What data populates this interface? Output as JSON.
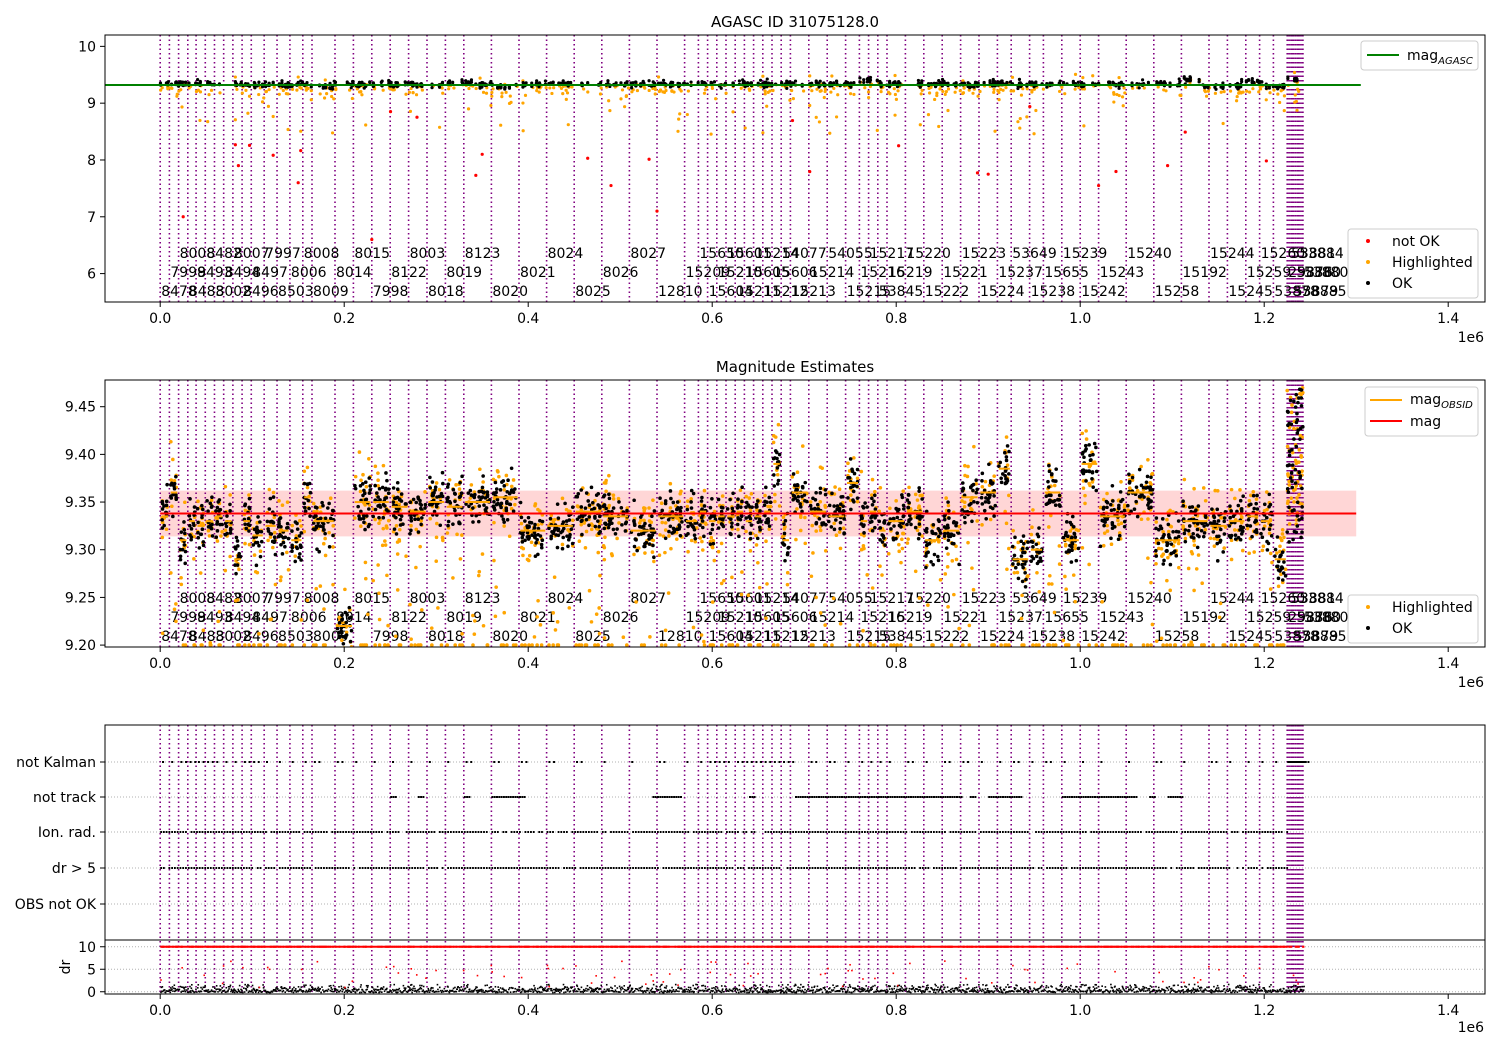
{
  "chart_data": [
    {
      "type": "scatter",
      "title": "AGASC ID 31075128.0",
      "xlabel": "",
      "ylabel": "",
      "x_offset_label": "1e6",
      "xlim": [
        -60000,
        1440000
      ],
      "ylim": [
        5.5,
        10.2
      ],
      "x_ticks": [
        0,
        0.2,
        0.4,
        0.6,
        0.8,
        1.0,
        1.2,
        1.4
      ],
      "x_tick_labels": [
        "0.0",
        "0.2",
        "0.4",
        "0.6",
        "0.8",
        "1.0",
        "1.2",
        "1.4"
      ],
      "y_ticks": [
        6,
        7,
        8,
        9,
        10
      ],
      "y_tick_labels": [
        "6",
        "7",
        "8",
        "9",
        "10"
      ],
      "agasc_mag": 9.32,
      "level_series": [
        {
          "x": [
            0,
            20000
          ],
          "y": [
            9.33,
            9.33
          ]
        },
        {
          "x": [
            20000,
            52000
          ],
          "y": [
            9.35,
            9.35
          ]
        },
        {
          "x": [
            52000,
            164000
          ],
          "y": [
            9.33,
            9.33
          ]
        },
        {
          "x": [
            164000,
            188000
          ],
          "y": [
            9.29,
            9.29
          ]
        },
        {
          "x": [
            188000,
            310000
          ],
          "y": [
            9.33,
            9.33
          ]
        },
        {
          "x": [
            310000,
            340000
          ],
          "y": [
            9.36,
            9.36
          ]
        },
        {
          "x": [
            340000,
            365000
          ],
          "y": [
            9.33,
            9.33
          ]
        },
        {
          "x": [
            365000,
            385000
          ],
          "y": [
            9.28,
            9.28
          ]
        },
        {
          "x": [
            385000,
            760000
          ],
          "y": [
            9.34,
            9.34
          ]
        },
        {
          "x": [
            760000,
            780000
          ],
          "y": [
            9.41,
            9.41
          ]
        },
        {
          "x": [
            780000,
            1110000
          ],
          "y": [
            9.34,
            9.34
          ]
        },
        {
          "x": [
            1110000,
            1130000
          ],
          "y": [
            9.42,
            9.42
          ]
        },
        {
          "x": [
            1130000,
            1175000
          ],
          "y": [
            9.29,
            9.29
          ]
        },
        {
          "x": [
            1175000,
            1200000
          ],
          "y": [
            9.37,
            9.37
          ]
        },
        {
          "x": [
            1200000,
            1225000
          ],
          "y": [
            9.31,
            9.31
          ]
        },
        {
          "x": [
            1225000,
            1242000
          ],
          "y": [
            9.42,
            9.42
          ]
        }
      ],
      "legend_upper": [
        {
          "label": "mag",
          "sub": "AGASC",
          "color": "#008000"
        }
      ],
      "legend_lower": [
        {
          "label": "not OK",
          "color": "#ff0000"
        },
        {
          "label": "Highlighted",
          "color": "#ffa500"
        },
        {
          "label": "OK",
          "color": "#000000"
        }
      ]
    },
    {
      "type": "scatter",
      "title": "Magnitude Estimates",
      "xlabel": "",
      "ylabel": "",
      "x_offset_label": "1e6",
      "xlim": [
        -60000,
        1440000
      ],
      "ylim": [
        9.198,
        9.478
      ],
      "x_ticks": [
        0,
        0.2,
        0.4,
        0.6,
        0.8,
        1.0,
        1.2,
        1.4
      ],
      "x_tick_labels": [
        "0.0",
        "0.2",
        "0.4",
        "0.6",
        "0.8",
        "1.0",
        "1.2",
        "1.4"
      ],
      "y_ticks": [
        9.2,
        9.25,
        9.3,
        9.35,
        9.4,
        9.45
      ],
      "y_tick_labels": [
        "9.20",
        "9.25",
        "9.30",
        "9.35",
        "9.40",
        "9.45"
      ],
      "mean_mag": 9.338,
      "mean_band": [
        9.314,
        9.362
      ],
      "mean_line_x": [
        0,
        1300000
      ],
      "legend_upper": [
        {
          "label": "mag",
          "sub": "OBSID",
          "color": "#ffa500"
        },
        {
          "label": "mag",
          "sub": "",
          "color": "#ff0000"
        }
      ],
      "legend_lower": [
        {
          "label": "Highlighted",
          "color": "#ffa500"
        },
        {
          "label": "OK",
          "color": "#000000"
        }
      ]
    },
    {
      "type": "scatter",
      "title": "",
      "x_offset_label": "1e6",
      "xlim": [
        -60000,
        1440000
      ],
      "flag_labels": [
        "not Kalman",
        "not track",
        "Ion. rad.",
        "dr > 5",
        "OBS not OK"
      ],
      "x_ticks": [
        0,
        0.2,
        0.4,
        0.6,
        0.8,
        1.0,
        1.2,
        1.4
      ],
      "x_tick_labels": [
        "0.0",
        "0.2",
        "0.4",
        "0.6",
        "0.8",
        "1.0",
        "1.2",
        "1.4"
      ],
      "track_ranges": [
        [
          250000,
          255000
        ],
        [
          280000,
          285000
        ],
        [
          330000,
          335000
        ],
        [
          360000,
          395000
        ],
        [
          535000,
          565000
        ],
        [
          640000,
          645000
        ],
        [
          690000,
          780000
        ],
        [
          780000,
          870000
        ],
        [
          880000,
          885000
        ],
        [
          900000,
          935000
        ],
        [
          980000,
          1060000
        ],
        [
          1075000,
          1080000
        ],
        [
          1095000,
          1110000
        ]
      ],
      "dr_subplot": {
        "ylabel": "dr",
        "ylim": [
          -0.5,
          11.5
        ],
        "y_ticks": [
          0,
          5,
          10
        ],
        "y_tick_labels": [
          "0",
          "5",
          "10"
        ],
        "threshold": 10
      }
    }
  ],
  "obsids": [
    {
      "x": 0,
      "label": "8478"
    },
    {
      "x": 10000,
      "label": "7999"
    },
    {
      "x": 20000,
      "label": "8008"
    },
    {
      "x": 30000,
      "label": "8483"
    },
    {
      "x": 39000,
      "label": "8493"
    },
    {
      "x": 49000,
      "label": "8482"
    },
    {
      "x": 59000,
      "label": "8002"
    },
    {
      "x": 69000,
      "label": "8494"
    },
    {
      "x": 79000,
      "label": "8007"
    },
    {
      "x": 89000,
      "label": "8496"
    },
    {
      "x": 99000,
      "label": "8497"
    },
    {
      "x": 113000,
      "label": "7997"
    },
    {
      "x": 127000,
      "label": "8503"
    },
    {
      "x": 141000,
      "label": "8006"
    },
    {
      "x": 155000,
      "label": "8008"
    },
    {
      "x": 165000,
      "label": "8009"
    },
    {
      "x": 190000,
      "label": "8014"
    },
    {
      "x": 210000,
      "label": "8015"
    },
    {
      "x": 230000,
      "label": "7998"
    },
    {
      "x": 250000,
      "label": "8122"
    },
    {
      "x": 270000,
      "label": "8003"
    },
    {
      "x": 290000,
      "label": "8018"
    },
    {
      "x": 310000,
      "label": "8019"
    },
    {
      "x": 330000,
      "label": "8123"
    },
    {
      "x": 360000,
      "label": "8020"
    },
    {
      "x": 390000,
      "label": "8021"
    },
    {
      "x": 420000,
      "label": "8024"
    },
    {
      "x": 450000,
      "label": "8025"
    },
    {
      "x": 480000,
      "label": "8026"
    },
    {
      "x": 510000,
      "label": "8027"
    },
    {
      "x": 540000,
      "label": "12810"
    },
    {
      "x": 570000,
      "label": "15209"
    },
    {
      "x": 585000,
      "label": "15650"
    },
    {
      "x": 595000,
      "label": "15604"
    },
    {
      "x": 605000,
      "label": "15210"
    },
    {
      "x": 615000,
      "label": "15601"
    },
    {
      "x": 625000,
      "label": "15211"
    },
    {
      "x": 635000,
      "label": "15605"
    },
    {
      "x": 645000,
      "label": "15214"
    },
    {
      "x": 655000,
      "label": "15212"
    },
    {
      "x": 665000,
      "label": "15606"
    },
    {
      "x": 675000,
      "label": "54077"
    },
    {
      "x": 685000,
      "label": "15213"
    },
    {
      "x": 705000,
      "label": "15214"
    },
    {
      "x": 725000,
      "label": "54055"
    },
    {
      "x": 745000,
      "label": "15215"
    },
    {
      "x": 760000,
      "label": "15216"
    },
    {
      "x": 770000,
      "label": "15217"
    },
    {
      "x": 780000,
      "label": "53845"
    },
    {
      "x": 790000,
      "label": "15219"
    },
    {
      "x": 810000,
      "label": "15220"
    },
    {
      "x": 830000,
      "label": "15222"
    },
    {
      "x": 850000,
      "label": "15221"
    },
    {
      "x": 870000,
      "label": "15223"
    },
    {
      "x": 890000,
      "label": "15224"
    },
    {
      "x": 910000,
      "label": "15237"
    },
    {
      "x": 925000,
      "label": "53649"
    },
    {
      "x": 945000,
      "label": "15238"
    },
    {
      "x": 960000,
      "label": "15655"
    },
    {
      "x": 980000,
      "label": "15239"
    },
    {
      "x": 1000000,
      "label": "15242"
    },
    {
      "x": 1020000,
      "label": "15243"
    },
    {
      "x": 1050000,
      "label": "15240"
    },
    {
      "x": 1080000,
      "label": "15258"
    },
    {
      "x": 1110000,
      "label": "15192"
    },
    {
      "x": 1140000,
      "label": "15244"
    },
    {
      "x": 1160000,
      "label": "15245"
    },
    {
      "x": 1180000,
      "label": "15259"
    },
    {
      "x": 1195000,
      "label": "15260"
    },
    {
      "x": 1210000,
      "label": "53878"
    },
    {
      "x": 1225000,
      "label": "29876"
    },
    {
      "x": 1228000,
      "label": "53881"
    },
    {
      "x": 1231000,
      "label": "53879"
    },
    {
      "x": 1234000,
      "label": "53880"
    },
    {
      "x": 1237000,
      "label": "53884"
    },
    {
      "x": 1240000,
      "label": "53885"
    },
    {
      "x": 1242000,
      "label": "53880"
    }
  ],
  "colors": {
    "obsid_line": "#800080",
    "ok": "#000000",
    "highlighted": "#ffa500",
    "not_ok": "#ff0000",
    "agasc": "#008000",
    "mean": "#ff0000",
    "band": "#ffcccc",
    "obsid_mag": "#ffa500"
  }
}
